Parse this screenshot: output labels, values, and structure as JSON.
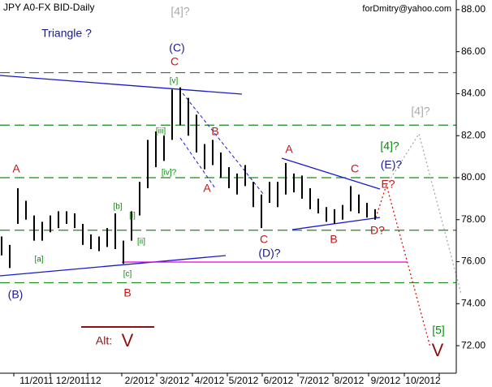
{
  "chart_data": {
    "type": "ohlc",
    "title": "JPY A0-FX BID-Daily",
    "subtitle": "forDmitry@yahoo.com",
    "categories": [
      "11/2011",
      "12/2011",
      "12",
      "2/2012",
      "3/2012",
      "4/2012",
      "5/2012",
      "6/2012",
      "7/2012",
      "8/2012",
      "9/2012",
      "10/2012"
    ],
    "high": [
      77.2,
      76.8,
      79.5,
      78.9,
      78.2,
      77.9,
      78.2,
      78.4,
      78.4,
      78.3,
      77.8,
      77.3,
      77.2,
      77.6,
      78.3,
      77.0,
      78.4,
      79.8,
      81.8,
      82.2,
      82.0,
      84.2,
      84.3,
      83.8,
      83.0,
      81.6,
      81.8,
      81.2,
      80.5,
      80.2,
      80.6,
      79.8,
      79.2,
      79.8,
      79.8,
      80.7,
      80.2,
      80.1,
      79.5,
      79.0,
      78.6,
      78.5,
      78.7,
      79.6,
      79.2,
      78.8,
      78.5
    ],
    "low": [
      76.3,
      75.7,
      77.8,
      78.0,
      77.0,
      77.0,
      77.4,
      77.6,
      77.8,
      77.6,
      76.8,
      76.6,
      76.5,
      76.7,
      76.6,
      75.9,
      77.0,
      78.2,
      79.5,
      80.5,
      80.8,
      81.8,
      82.5,
      82.0,
      81.2,
      80.4,
      80.6,
      80.0,
      79.5,
      79.2,
      79.6,
      78.6,
      77.6,
      78.8,
      78.6,
      79.2,
      79.3,
      79.0,
      78.5,
      78.3,
      77.9,
      77.8,
      78.0,
      78.4,
      78.3,
      78.1,
      78.0
    ],
    "color": "#000000",
    "levels": [
      85,
      82.5,
      80,
      77.5,
      75
    ],
    "ylim": [
      70.69,
      88.46
    ],
    "yticks": [
      {
        "value": 72,
        "label": "72.00"
      },
      {
        "value": 74,
        "label": "74.00"
      },
      {
        "value": 76,
        "label": "76.00"
      },
      {
        "value": 78,
        "label": "78.00"
      },
      {
        "value": 80,
        "label": "80.00"
      },
      {
        "value": 82,
        "label": "82.00"
      },
      {
        "value": 84,
        "label": "84.00"
      },
      {
        "value": 86,
        "label": "86.00"
      },
      {
        "value": 88,
        "label": "88.00"
      }
    ],
    "annotations": [
      "Triangle ?",
      "[4]?",
      "(C)",
      "C",
      "[v]",
      "[iii]",
      "[iv]?",
      "B",
      "A",
      "C",
      "(D)?",
      "A",
      "B",
      "C",
      "[4]?",
      "(E)?",
      "E?",
      "D?",
      "[4]?",
      "[5]",
      "V",
      "Alt:",
      "V",
      "A",
      "[a]",
      "[b]",
      "[i]",
      "[ii]",
      "[c]",
      "B",
      "(B)"
    ]
  }
}
